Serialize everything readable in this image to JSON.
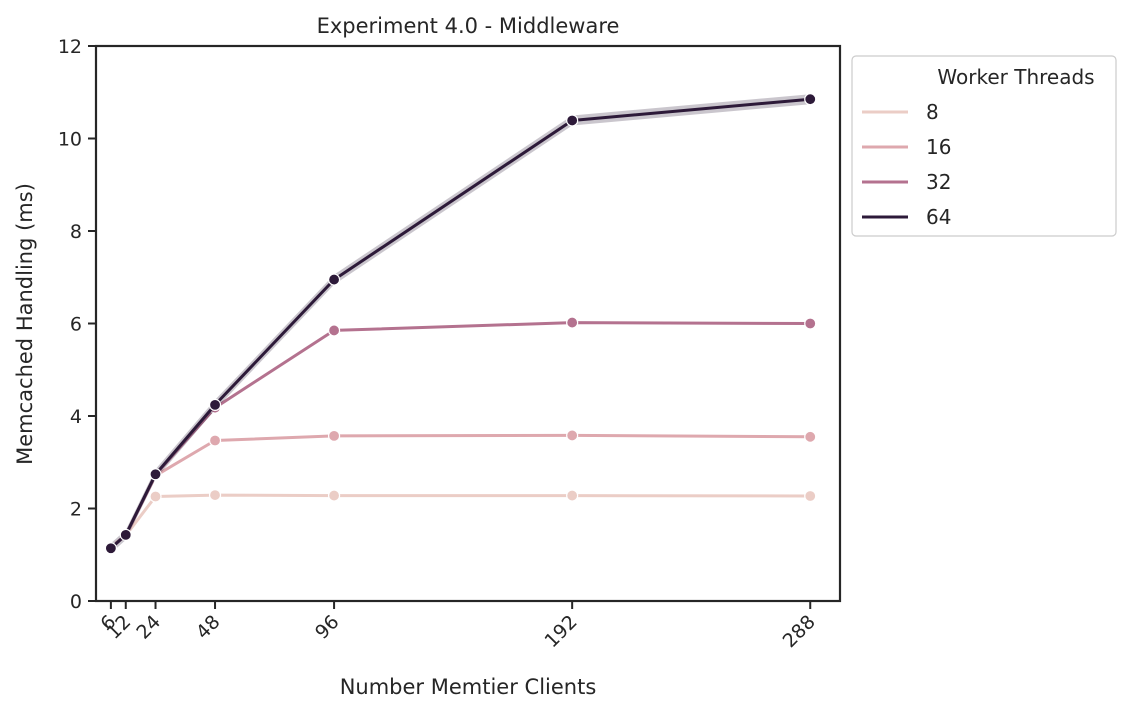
{
  "chart_data": {
    "type": "line",
    "title": "Experiment 4.0 - Middleware",
    "xlabel": "Number Memtier Clients",
    "ylabel": "Memcached Handling (ms)",
    "x": [
      6,
      12,
      24,
      48,
      96,
      192,
      288
    ],
    "x_tick_labels": [
      "6",
      "12",
      "24",
      "48",
      "96",
      "192",
      "288"
    ],
    "xlim": [
      0,
      300
    ],
    "ylim": [
      0,
      12
    ],
    "y_ticks": [
      0,
      2,
      4,
      6,
      8,
      10,
      12
    ],
    "y_tick_labels": [
      "0",
      "2",
      "4",
      "6",
      "8",
      "10",
      "12"
    ],
    "grid": false,
    "legend": {
      "title": "Worker Threads",
      "placement": "outside-right"
    },
    "series": [
      {
        "name": "8",
        "color": "#ebcdc6",
        "values": [
          1.18,
          1.42,
          2.26,
          2.29,
          2.28,
          2.28,
          2.27
        ]
      },
      {
        "name": "16",
        "color": "#dea8ae",
        "values": [
          1.16,
          1.42,
          2.71,
          3.47,
          3.57,
          3.58,
          3.55
        ]
      },
      {
        "name": "32",
        "color": "#b4728f",
        "values": [
          1.14,
          1.43,
          2.73,
          4.18,
          5.85,
          6.02,
          6.0
        ]
      },
      {
        "name": "64",
        "color": "#2d1a39",
        "values": [
          1.14,
          1.43,
          2.74,
          4.24,
          6.95,
          10.39,
          10.85
        ]
      }
    ]
  }
}
